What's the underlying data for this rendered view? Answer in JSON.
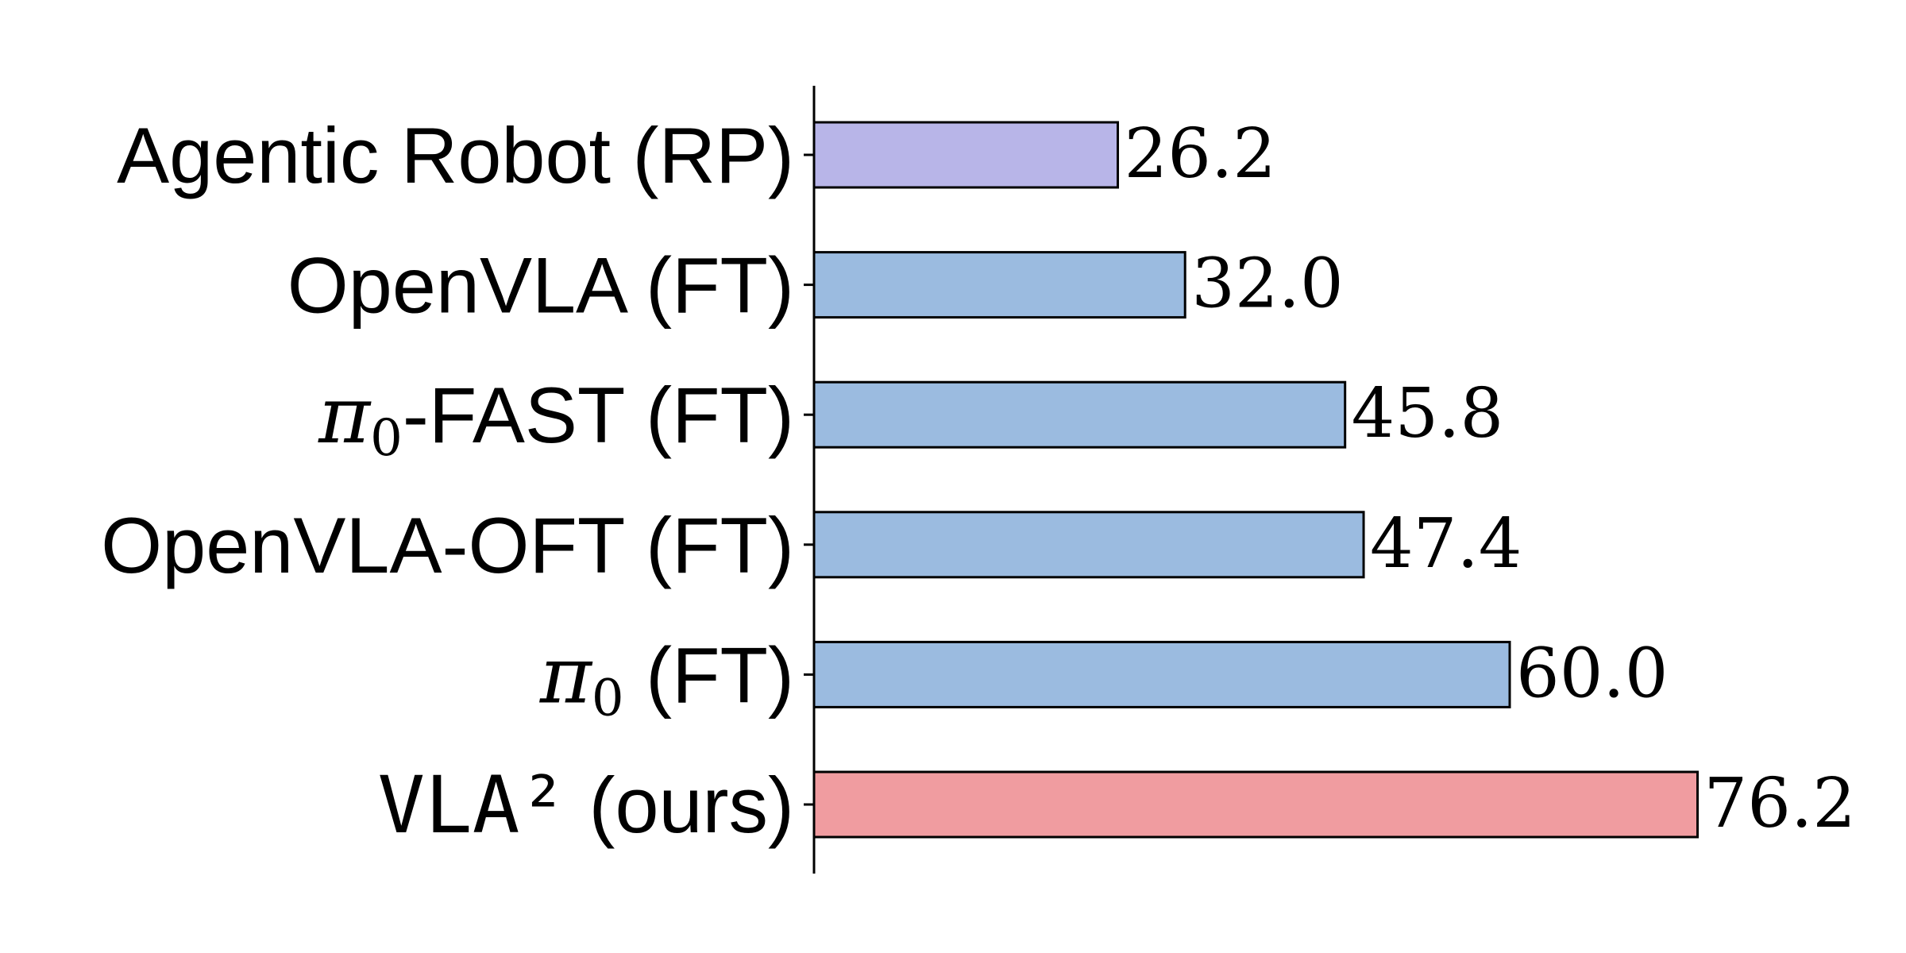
{
  "chart_data": {
    "type": "bar",
    "orientation": "horizontal",
    "title": "",
    "xlabel": "",
    "ylabel": "",
    "xlim": [
      0,
      80
    ],
    "grid": false,
    "categories": [
      {
        "text": "Agentic Robot (RP)"
      },
      {
        "text": "OpenVLA (FT)"
      },
      {
        "math": "π",
        "sub": "0",
        "text": "-FAST (FT)"
      },
      {
        "text": "OpenVLA-OFT (FT)"
      },
      {
        "math": "π",
        "sub": "0",
        "text": " (FT)"
      },
      {
        "mono": "VLA²",
        "text": " (ours)"
      }
    ],
    "values": [
      26.2,
      32.0,
      45.8,
      47.4,
      60.0,
      76.2
    ],
    "value_labels": [
      "26.2",
      "32.0",
      "45.8",
      "47.4",
      "60.0",
      "76.2"
    ],
    "colors": [
      "#b8b5e8",
      "#9bbbe0",
      "#9bbbe0",
      "#9bbbe0",
      "#9bbbe0",
      "#f09ca0"
    ]
  }
}
